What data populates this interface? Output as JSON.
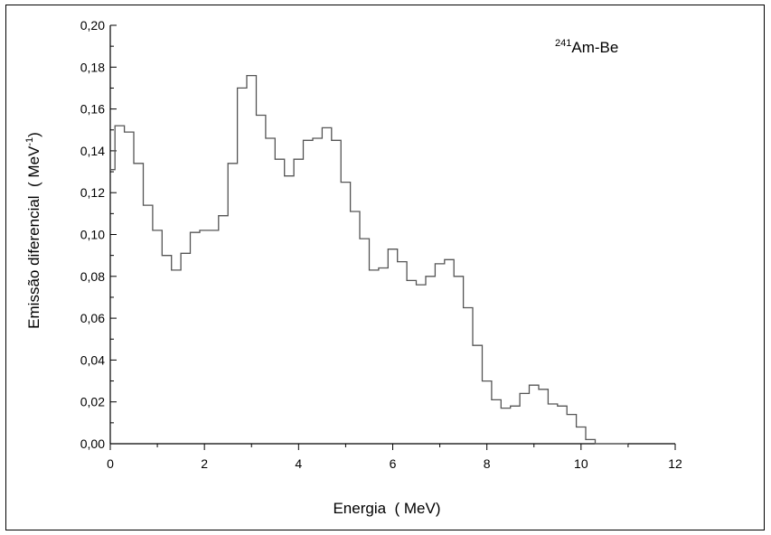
{
  "chart_data": {
    "type": "line",
    "step": true,
    "title": "",
    "xlabel": "Energia  ( MeV)",
    "ylabel": "Emissão diferencial  ( MeV",
    "ylabel_sup": "-1",
    "ylabel_close": ")",
    "annotation": {
      "sup": "241",
      "text": "Am-Be",
      "position": "top-right"
    },
    "xlim": [
      0,
      12
    ],
    "ylim": [
      0,
      0.2
    ],
    "x_ticks": [
      0,
      2,
      4,
      6,
      8,
      10,
      12
    ],
    "x_tick_labels": [
      "0",
      "2",
      "4",
      "6",
      "8",
      "10",
      "12"
    ],
    "y_ticks": [
      0,
      0.02,
      0.04,
      0.06,
      0.08,
      0.1,
      0.12,
      0.14,
      0.16,
      0.18,
      0.2
    ],
    "y_tick_labels": [
      "0,00",
      "0,02",
      "0,04",
      "0,06",
      "0,08",
      "0,10",
      "0,12",
      "0,14",
      "0,16",
      "0,18",
      "0,20"
    ],
    "grid": false,
    "legend": "none",
    "line_color": "#555555",
    "series": [
      {
        "bin_edges": [
          0,
          0.1,
          0.3,
          0.5,
          0.7,
          0.9,
          1.1,
          1.3,
          1.5,
          1.7,
          1.9,
          2.1,
          2.3,
          2.5,
          2.7,
          2.9,
          3.1,
          3.3,
          3.5,
          3.7,
          3.9,
          4.1,
          4.3,
          4.5,
          4.7,
          4.9,
          5.1,
          5.3,
          5.5,
          5.7,
          5.9,
          6.1,
          6.3,
          6.5,
          6.7,
          6.9,
          7.1,
          7.3,
          7.5,
          7.7,
          7.9,
          8.1,
          8.3,
          8.5,
          8.7,
          8.9,
          9.1,
          9.3,
          9.5,
          9.7,
          9.9,
          10.1,
          10.3,
          10.5,
          10.7,
          10.9,
          11.0
        ],
        "values": [
          0.131,
          0.152,
          0.149,
          0.134,
          0.114,
          0.102,
          0.09,
          0.083,
          0.091,
          0.101,
          0.102,
          0.102,
          0.109,
          0.134,
          0.17,
          0.176,
          0.157,
          0.146,
          0.136,
          0.128,
          0.136,
          0.145,
          0.146,
          0.151,
          0.145,
          0.125,
          0.111,
          0.098,
          0.083,
          0.084,
          0.093,
          0.087,
          0.078,
          0.076,
          0.08,
          0.086,
          0.088,
          0.08,
          0.065,
          0.047,
          0.03,
          0.021,
          0.017,
          0.018,
          0.024,
          0.028,
          0.026,
          0.019,
          0.018,
          0.014,
          0.008,
          0.002,
          0.0,
          0.0,
          0.0,
          0.0
        ]
      }
    ]
  }
}
